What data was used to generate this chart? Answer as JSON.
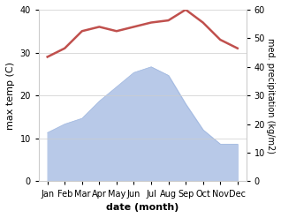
{
  "months": [
    "Jan",
    "Feb",
    "Mar",
    "Apr",
    "May",
    "Jun",
    "Jul",
    "Aug",
    "Sep",
    "Oct",
    "Nov",
    "Dec"
  ],
  "temperature": [
    29,
    31,
    35,
    36,
    35,
    36,
    37,
    37.5,
    40,
    37,
    33,
    31
  ],
  "precipitation": [
    17,
    20,
    22,
    28,
    33,
    38,
    40,
    37,
    27,
    18,
    13,
    13
  ],
  "temp_color": "#c0504d",
  "precip_color": "#b8c9e8",
  "precip_edge_color": "#a0b8e0",
  "xlabel": "date (month)",
  "ylabel_left": "max temp (C)",
  "ylabel_right": "med. precipitation (kg/m2)",
  "ylim_left": [
    0,
    40
  ],
  "ylim_right": [
    0,
    60
  ],
  "yticks_left": [
    0,
    10,
    20,
    30,
    40
  ],
  "yticks_right": [
    0,
    10,
    20,
    30,
    40,
    50,
    60
  ],
  "background_color": "#ffffff",
  "grid_color": "#cccccc"
}
